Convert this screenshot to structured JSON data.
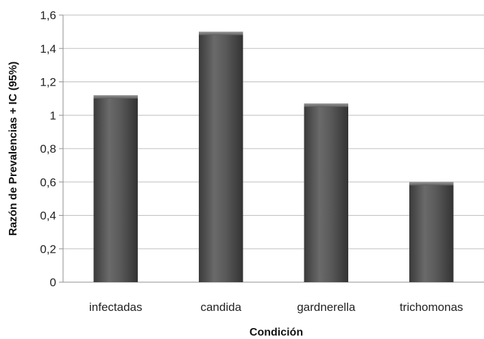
{
  "chart_data": {
    "type": "bar",
    "categories": [
      "infectadas",
      "candida",
      "gardnerella",
      "trichomonas"
    ],
    "values": [
      1.12,
      1.5,
      1.07,
      0.6
    ],
    "title": "",
    "xlabel": "Condición",
    "ylabel": "Razón de Prevalencias + IC (95%)",
    "ylim": [
      0,
      1.6
    ],
    "yticks": [
      0,
      0.2,
      0.4,
      0.6,
      0.8,
      1,
      1.2,
      1.4,
      1.6
    ],
    "yticklabels": [
      "0",
      "0,2",
      "0,4",
      "0,6",
      "0,8",
      "1",
      "1,2",
      "1,4",
      "1,6"
    ],
    "grid": true,
    "legend": "none",
    "bar_color": "#4a4a4a",
    "grid_color": "#bdbdbd"
  }
}
